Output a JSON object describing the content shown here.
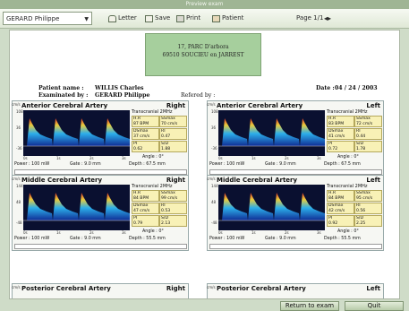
{
  "window": {
    "title": "Preview exam"
  },
  "toolbar": {
    "patient_select": "GERARD Philippe",
    "letter_label": "Letter",
    "save_label": "Save",
    "print_label": "Print",
    "patient_label": "Patient",
    "page_label": "Page 1/1"
  },
  "report": {
    "address_line1": "17, PARC D'arbora",
    "address_line2": "69510 SOUCIEU en JARREST",
    "patient_name_label": "Patient name :",
    "patient_name": "WILLIS Charles",
    "examined_by_label": "Examinated by :",
    "examined_by": "GERARD Philippe",
    "referred_by_label": "Refered by :",
    "date_label": "Date :",
    "date": "04 / 24 / 2003"
  },
  "panels": [
    {
      "title": "Anterior Cerebral Artery",
      "side": "Right",
      "hr": "87 BPM",
      "ssmax": "70 cm/s",
      "dsmax": "37 cm/s",
      "ri": "0.47",
      "pi": "0.62",
      "sd": "1.88",
      "power": "Power : 100 mW",
      "gate": "Gate : 9.0 mm",
      "depth": "Depth : 67.5 mm",
      "scale_top": "108",
      "scale_mid": "36",
      "scale_low": "-36"
    },
    {
      "title": "Anterior Cerebral Artery",
      "side": "Left",
      "hr": "83 BPM",
      "ssmax": "72 cm/s",
      "dsmax": "41 cm/s",
      "ri": "0.44",
      "pi": "0.72",
      "sd": "1.78",
      "power": "Power : 100 mW",
      "gate": "Gate : 9.0 mm",
      "depth": "Depth : 67.5 mm",
      "scale_top": "108",
      "scale_mid": "36",
      "scale_low": "-36"
    },
    {
      "title": "Middle Cerebral Artery",
      "side": "Right",
      "hr": "84 BPM",
      "ssmax": "99 cm/s",
      "dsmax": "47 cm/s",
      "ri": "0.53",
      "pi": "0.79",
      "sd": "2.13",
      "power": "Power : 100 mW",
      "gate": "Gate : 9.0 mm",
      "depth": "Depth : 55.5 mm",
      "scale_top": "144",
      "scale_mid": "48",
      "scale_low": "-48"
    },
    {
      "title": "Middle Cerebral Artery",
      "side": "Left",
      "hr": "84 BPM",
      "ssmax": "95 cm/s",
      "dsmax": "42 cm/s",
      "ri": "0.56",
      "pi": "0.92",
      "sd": "2.25",
      "power": "Power : 100 mW",
      "gate": "Gate : 9.0 mm",
      "depth": "Depth : 55.5 mm",
      "scale_top": "144",
      "scale_mid": "48",
      "scale_low": "-48"
    },
    {
      "title": "Posterior Cerebral Artery",
      "side": "Right"
    },
    {
      "title": "Posterior Cerebral Artery",
      "side": "Left"
    }
  ],
  "labels": {
    "transcranial": "Transcranial 2MHz",
    "hr": "H.R",
    "ssmax": "SSmax",
    "dsmax": "DSmax",
    "ri": "RI",
    "pi": "PI",
    "sd": "S/D",
    "angle": "Angle : 0°",
    "cms": "cm/s",
    "xt0": "0s",
    "xt1": "1s",
    "xt2": "2s",
    "xt3": "3s"
  },
  "bottom": {
    "return_label": "Return to exam",
    "quit_label": "Quit"
  }
}
